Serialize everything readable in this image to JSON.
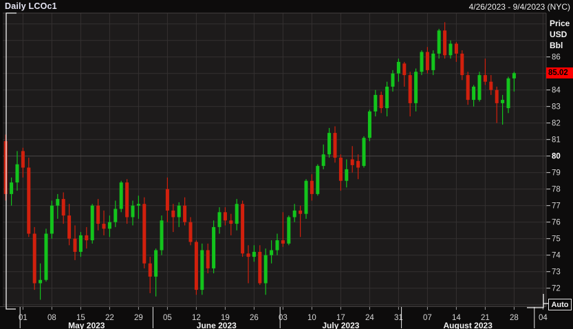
{
  "header": {
    "title": "Daily LCOc1",
    "date_range": "4/26/2023 - 9/4/2023 (NYC)"
  },
  "y_axis": {
    "unit_lines": [
      "Price",
      "USD",
      "Bbl"
    ],
    "ticks": [
      86,
      84,
      83,
      82,
      81,
      80,
      79,
      78,
      77,
      76,
      75,
      74,
      73,
      72
    ],
    "bold_tick": 80,
    "auto_label": "Auto"
  },
  "x_axis": {
    "week_labels": [
      {
        "index": 3,
        "label": "01"
      },
      {
        "index": 8,
        "label": "08"
      },
      {
        "index": 13,
        "label": "15"
      },
      {
        "index": 18,
        "label": "22"
      },
      {
        "index": 23,
        "label": "29"
      },
      {
        "index": 28,
        "label": "05"
      },
      {
        "index": 33,
        "label": "12"
      },
      {
        "index": 38,
        "label": "19"
      },
      {
        "index": 43,
        "label": "26"
      },
      {
        "index": 48,
        "label": "03"
      },
      {
        "index": 53,
        "label": "10"
      },
      {
        "index": 58,
        "label": "17"
      },
      {
        "index": 63,
        "label": "24"
      },
      {
        "index": 68,
        "label": "31"
      },
      {
        "index": 73,
        "label": "07"
      },
      {
        "index": 78,
        "label": "14"
      },
      {
        "index": 83,
        "label": "21"
      },
      {
        "index": 88,
        "label": "28"
      },
      {
        "index": 93,
        "label": "04"
      }
    ],
    "month_labels": [
      {
        "label": "May 2023",
        "center_index": 14
      },
      {
        "label": "June 2023",
        "center_index": 36.5
      },
      {
        "label": "July 2023",
        "center_index": 58
      },
      {
        "label": "August 2023",
        "center_index": 80
      }
    ],
    "month_boundaries_after_index": [
      2,
      25,
      47,
      68,
      91
    ]
  },
  "last_price_badge": {
    "value": "85.02",
    "price": 85.02
  },
  "colors": {
    "up": "#13c41c",
    "down": "#d1200d",
    "badge_bg": "#fb0000",
    "badge_text": "#000000",
    "grid": "#343131",
    "grid_bold": "#4b4747",
    "plot_bg": "#1d1b1b",
    "page_bg": "#0d0c0c",
    "border": "#454141",
    "bracket": "#f5f5f5",
    "tick_text": "#d6d6d6",
    "tick_text_bold": "#ffffff",
    "month_text": "#f0f0f0"
  },
  "chart_data": {
    "type": "candlestick",
    "instrument": "LCOc1",
    "interval": "Daily",
    "title": "Daily LCOc1",
    "price_axis": {
      "visible_min": 70.9,
      "visible_max": 88.7,
      "grid_min": 71,
      "grid_max": 88,
      "step": 1
    },
    "x_range": {
      "start": "2023-04-26",
      "end": "2023-09-04",
      "total_slots": 94
    },
    "last_price": 85.02,
    "candles": [
      {
        "d": "04-26",
        "o": 80.9,
        "h": 81.3,
        "l": 77.3,
        "c": 77.7
      },
      {
        "d": "04-27",
        "o": 77.7,
        "h": 78.7,
        "l": 77.0,
        "c": 78.4
      },
      {
        "d": "04-28",
        "o": 78.4,
        "h": 80.3,
        "l": 77.9,
        "c": 79.5
      },
      {
        "d": "05-01",
        "o": 80.3,
        "h": 80.5,
        "l": 78.7,
        "c": 79.3
      },
      {
        "d": "05-02",
        "o": 79.3,
        "h": 79.9,
        "l": 75.1,
        "c": 75.3
      },
      {
        "d": "05-03",
        "o": 75.3,
        "h": 75.7,
        "l": 71.9,
        "c": 72.3
      },
      {
        "d": "05-04",
        "o": 72.3,
        "h": 73.5,
        "l": 71.3,
        "c": 72.5
      },
      {
        "d": "05-05",
        "o": 72.5,
        "h": 75.6,
        "l": 72.4,
        "c": 75.3
      },
      {
        "d": "05-08",
        "o": 75.3,
        "h": 77.3,
        "l": 75.0,
        "c": 77.0
      },
      {
        "d": "05-09",
        "o": 77.0,
        "h": 77.7,
        "l": 76.2,
        "c": 77.4
      },
      {
        "d": "05-10",
        "o": 77.4,
        "h": 77.8,
        "l": 75.9,
        "c": 76.4
      },
      {
        "d": "05-11",
        "o": 76.4,
        "h": 77.1,
        "l": 74.6,
        "c": 75.0
      },
      {
        "d": "05-12",
        "o": 75.0,
        "h": 75.8,
        "l": 73.7,
        "c": 74.2
      },
      {
        "d": "05-15",
        "o": 74.2,
        "h": 75.4,
        "l": 73.9,
        "c": 75.2
      },
      {
        "d": "05-16",
        "o": 75.2,
        "h": 75.7,
        "l": 74.4,
        "c": 74.9
      },
      {
        "d": "05-17",
        "o": 74.9,
        "h": 77.1,
        "l": 74.7,
        "c": 77.0
      },
      {
        "d": "05-18",
        "o": 77.0,
        "h": 77.4,
        "l": 75.5,
        "c": 75.9
      },
      {
        "d": "05-19",
        "o": 75.9,
        "h": 76.7,
        "l": 75.2,
        "c": 75.6
      },
      {
        "d": "05-22",
        "o": 75.6,
        "h": 76.4,
        "l": 75.1,
        "c": 76.0
      },
      {
        "d": "05-23",
        "o": 76.0,
        "h": 77.3,
        "l": 75.7,
        "c": 76.8
      },
      {
        "d": "05-24",
        "o": 76.8,
        "h": 78.5,
        "l": 76.6,
        "c": 78.4
      },
      {
        "d": "05-25",
        "o": 78.4,
        "h": 78.6,
        "l": 75.9,
        "c": 76.3
      },
      {
        "d": "05-26",
        "o": 76.3,
        "h": 77.3,
        "l": 75.8,
        "c": 77.0
      },
      {
        "d": "05-29",
        "o": 77.0,
        "h": 77.6,
        "l": 76.2,
        "c": 77.1
      },
      {
        "d": "05-30",
        "o": 77.1,
        "h": 77.5,
        "l": 73.2,
        "c": 73.5
      },
      {
        "d": "05-31",
        "o": 73.5,
        "h": 73.9,
        "l": 71.7,
        "c": 72.7
      },
      {
        "d": "06-01",
        "o": 72.7,
        "h": 74.4,
        "l": 71.5,
        "c": 74.3
      },
      {
        "d": "06-02",
        "o": 74.3,
        "h": 76.4,
        "l": 74.0,
        "c": 76.1
      },
      {
        "d": "06-05",
        "o": 78.0,
        "h": 78.7,
        "l": 76.0,
        "c": 76.7
      },
      {
        "d": "06-06",
        "o": 76.7,
        "h": 77.1,
        "l": 75.4,
        "c": 76.3
      },
      {
        "d": "06-07",
        "o": 76.3,
        "h": 77.2,
        "l": 75.7,
        "c": 77.0
      },
      {
        "d": "06-08",
        "o": 77.0,
        "h": 77.5,
        "l": 75.8,
        "c": 76.0
      },
      {
        "d": "06-09",
        "o": 76.0,
        "h": 76.3,
        "l": 74.6,
        "c": 74.8
      },
      {
        "d": "06-12",
        "o": 74.8,
        "h": 74.9,
        "l": 71.6,
        "c": 71.9
      },
      {
        "d": "06-13",
        "o": 71.9,
        "h": 74.7,
        "l": 71.6,
        "c": 74.3
      },
      {
        "d": "06-14",
        "o": 74.3,
        "h": 74.7,
        "l": 72.9,
        "c": 73.2
      },
      {
        "d": "06-15",
        "o": 73.2,
        "h": 76.1,
        "l": 72.9,
        "c": 75.7
      },
      {
        "d": "06-16",
        "o": 75.7,
        "h": 76.9,
        "l": 75.3,
        "c": 76.6
      },
      {
        "d": "06-19",
        "o": 76.6,
        "h": 76.9,
        "l": 75.8,
        "c": 76.1
      },
      {
        "d": "06-20",
        "o": 76.1,
        "h": 76.5,
        "l": 75.2,
        "c": 75.9
      },
      {
        "d": "06-21",
        "o": 75.9,
        "h": 77.4,
        "l": 75.5,
        "c": 77.1
      },
      {
        "d": "06-22",
        "o": 77.1,
        "h": 77.3,
        "l": 73.9,
        "c": 74.1
      },
      {
        "d": "06-23",
        "o": 74.1,
        "h": 74.6,
        "l": 72.3,
        "c": 73.9
      },
      {
        "d": "06-26",
        "o": 73.9,
        "h": 74.6,
        "l": 73.6,
        "c": 74.2
      },
      {
        "d": "06-27",
        "o": 74.2,
        "h": 74.6,
        "l": 72.2,
        "c": 72.3
      },
      {
        "d": "06-28",
        "o": 72.3,
        "h": 74.4,
        "l": 71.6,
        "c": 74.0
      },
      {
        "d": "06-29",
        "o": 74.0,
        "h": 74.9,
        "l": 73.5,
        "c": 74.3
      },
      {
        "d": "06-30",
        "o": 74.3,
        "h": 75.3,
        "l": 74.0,
        "c": 74.9
      },
      {
        "d": "07-03",
        "o": 74.9,
        "h": 76.6,
        "l": 74.5,
        "c": 74.7
      },
      {
        "d": "07-04",
        "o": 74.7,
        "h": 76.4,
        "l": 74.6,
        "c": 76.3
      },
      {
        "d": "07-05",
        "o": 76.3,
        "h": 77.1,
        "l": 76.0,
        "c": 76.7
      },
      {
        "d": "07-06",
        "o": 76.7,
        "h": 77.0,
        "l": 75.1,
        "c": 76.5
      },
      {
        "d": "07-07",
        "o": 76.5,
        "h": 78.6,
        "l": 76.2,
        "c": 78.5
      },
      {
        "d": "07-10",
        "o": 78.5,
        "h": 78.9,
        "l": 77.3,
        "c": 77.7
      },
      {
        "d": "07-11",
        "o": 77.7,
        "h": 79.5,
        "l": 77.6,
        "c": 79.4
      },
      {
        "d": "07-12",
        "o": 79.4,
        "h": 80.7,
        "l": 79.2,
        "c": 80.1
      },
      {
        "d": "07-13",
        "o": 80.1,
        "h": 81.7,
        "l": 79.9,
        "c": 81.4
      },
      {
        "d": "07-14",
        "o": 81.4,
        "h": 81.8,
        "l": 79.6,
        "c": 79.9
      },
      {
        "d": "07-17",
        "o": 79.9,
        "h": 80.1,
        "l": 77.9,
        "c": 78.5
      },
      {
        "d": "07-18",
        "o": 78.5,
        "h": 79.8,
        "l": 78.1,
        "c": 79.2
      },
      {
        "d": "07-19",
        "o": 79.8,
        "h": 80.6,
        "l": 79.0,
        "c": 79.45
      },
      {
        "d": "07-20",
        "o": 79.7,
        "h": 80.1,
        "l": 78.6,
        "c": 79.3
      },
      {
        "d": "07-21",
        "o": 79.4,
        "h": 81.2,
        "l": 79.3,
        "c": 81.1
      },
      {
        "d": "07-24",
        "o": 81.1,
        "h": 82.8,
        "l": 80.9,
        "c": 82.7
      },
      {
        "d": "07-25",
        "o": 82.7,
        "h": 84.0,
        "l": 82.4,
        "c": 83.7
      },
      {
        "d": "07-26",
        "o": 83.7,
        "h": 83.9,
        "l": 82.6,
        "c": 82.9
      },
      {
        "d": "07-27",
        "o": 82.9,
        "h": 84.5,
        "l": 82.4,
        "c": 84.2
      },
      {
        "d": "07-28",
        "o": 84.2,
        "h": 85.2,
        "l": 83.9,
        "c": 85.0
      },
      {
        "d": "07-31",
        "o": 85.0,
        "h": 85.9,
        "l": 84.5,
        "c": 85.7
      },
      {
        "d": "08-01",
        "o": 85.6,
        "h": 85.7,
        "l": 84.2,
        "c": 84.9
      },
      {
        "d": "08-02",
        "o": 84.9,
        "h": 85.1,
        "l": 82.4,
        "c": 83.2
      },
      {
        "d": "08-03",
        "o": 83.2,
        "h": 85.3,
        "l": 82.7,
        "c": 85.1
      },
      {
        "d": "08-04",
        "o": 85.1,
        "h": 86.4,
        "l": 84.9,
        "c": 86.3
      },
      {
        "d": "08-07",
        "o": 86.3,
        "h": 86.6,
        "l": 85.0,
        "c": 85.2
      },
      {
        "d": "08-08",
        "o": 85.2,
        "h": 86.4,
        "l": 84.9,
        "c": 86.2
      },
      {
        "d": "08-09",
        "o": 86.2,
        "h": 87.7,
        "l": 85.9,
        "c": 87.6
      },
      {
        "d": "08-10",
        "o": 87.6,
        "h": 88.1,
        "l": 85.9,
        "c": 86.1
      },
      {
        "d": "08-11",
        "o": 86.1,
        "h": 87.0,
        "l": 85.9,
        "c": 86.8
      },
      {
        "d": "08-14",
        "o": 86.8,
        "h": 86.9,
        "l": 85.7,
        "c": 86.2
      },
      {
        "d": "08-15",
        "o": 86.2,
        "h": 86.4,
        "l": 84.6,
        "c": 84.9
      },
      {
        "d": "08-16",
        "o": 84.9,
        "h": 85.1,
        "l": 83.1,
        "c": 83.4
      },
      {
        "d": "08-17",
        "o": 83.4,
        "h": 84.3,
        "l": 83.0,
        "c": 84.2
      },
      {
        "d": "08-18",
        "o": 83.4,
        "h": 85.1,
        "l": 83.3,
        "c": 84.9
      },
      {
        "d": "08-21",
        "o": 84.9,
        "h": 85.9,
        "l": 84.3,
        "c": 84.5
      },
      {
        "d": "08-22",
        "o": 84.5,
        "h": 84.9,
        "l": 83.7,
        "c": 84.0
      },
      {
        "d": "08-23",
        "o": 84.0,
        "h": 84.2,
        "l": 82.0,
        "c": 83.2
      },
      {
        "d": "08-24",
        "o": 83.2,
        "h": 83.7,
        "l": 81.9,
        "c": 83.4
      },
      {
        "d": "08-25",
        "o": 82.9,
        "h": 84.8,
        "l": 82.6,
        "c": 84.7
      },
      {
        "d": "08-28",
        "o": 84.7,
        "h": 85.1,
        "l": 83.9,
        "c": 85.02
      }
    ]
  }
}
